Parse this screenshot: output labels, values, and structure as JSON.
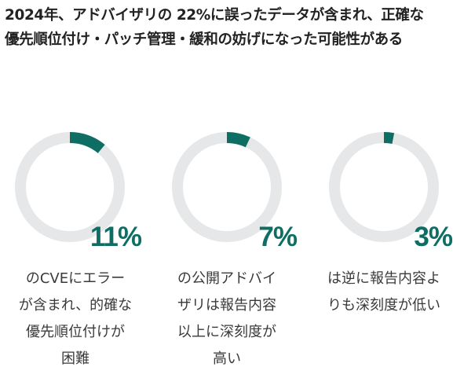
{
  "title": {
    "line1": "2024年、アドバイザリの 22%に誤ったデータが含まれ、正確な",
    "line2": "優先順位付け・パッチ管理・緩和の妨げになった可能性がある"
  },
  "colors": {
    "accent": "#0f6e63",
    "track": "#e6e7e9"
  },
  "chart_data": [
    {
      "type": "pie",
      "value": 11,
      "label": "11%",
      "caption_lines": [
        "のCVEにエラー",
        "が含まれ、的確な",
        "優先順位付けが",
        "困難"
      ]
    },
    {
      "type": "pie",
      "value": 7,
      "label": "7%",
      "caption_lines": [
        "の公開アドバイ",
        "ザリは報告内容",
        "以上に深刻度が",
        "高い"
      ]
    },
    {
      "type": "pie",
      "value": 3,
      "label": "3%",
      "caption_lines": [
        "は逆に報告内容よ",
        "りも深刻度が低い"
      ]
    }
  ]
}
